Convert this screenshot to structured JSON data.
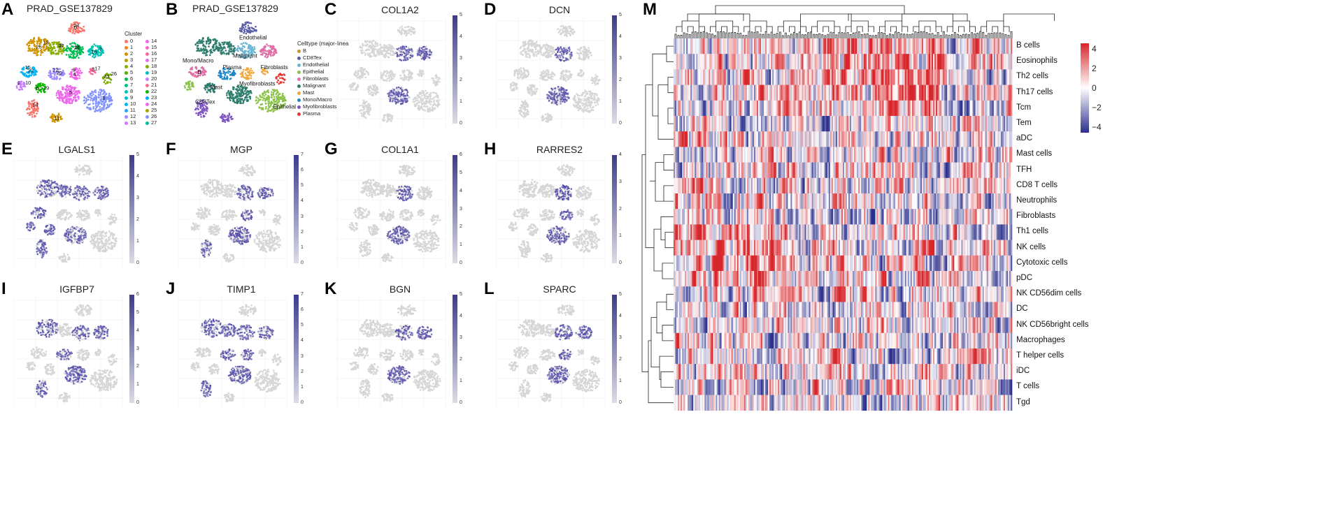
{
  "panels": {
    "A": {
      "label": "A",
      "title": "PRAD_GSE137829",
      "legend_title": "Cluster",
      "clusters": [
        "0",
        "1",
        "2",
        "3",
        "4",
        "5",
        "6",
        "7",
        "8",
        "9",
        "10",
        "11",
        "12",
        "13",
        "14",
        "15",
        "16",
        "17",
        "18",
        "19",
        "20",
        "21",
        "22",
        "23",
        "24",
        "25",
        "26",
        "27"
      ],
      "cluster_colors": [
        "#F8766D",
        "#E7851E",
        "#D09400",
        "#B2A100",
        "#89AC00",
        "#45B500",
        "#00BC51",
        "#00C087",
        "#00C0B2",
        "#00BCD6",
        "#00B3F2",
        "#29A3FF",
        "#9C8DFF",
        "#D277FF",
        "#F166E8",
        "#FF61C7",
        "#FF689F",
        "#E76BF3",
        "#7CAE00",
        "#00BFC4",
        "#C77CFF",
        "#FF6C90",
        "#0CB702",
        "#00A9FF",
        "#ED68ED",
        "#ABA300",
        "#8494FF",
        "#00C19A"
      ],
      "plot_labels": [
        "0",
        "25",
        "27",
        "18",
        "16",
        "15",
        "20",
        "4",
        "3",
        "26",
        "10",
        "19",
        "5",
        "8",
        "14",
        "11",
        "24",
        "13",
        "2",
        "21",
        "7",
        "22",
        "12",
        "9",
        "17",
        "23",
        "1",
        "6"
      ]
    },
    "B": {
      "label": "B",
      "title": "PRAD_GSE137829",
      "legend_title": "Celltype (major-linea",
      "celltypes": [
        "B",
        "CD8Tex",
        "Endothelial",
        "Epithelial",
        "Fibroblasts",
        "Malignant",
        "Mast",
        "Mono/Macro",
        "Myofibroblasts",
        "Plasma"
      ],
      "celltype_colors": [
        "#D08F2E",
        "#5A5EA8",
        "#6CB6D4",
        "#8BC34A",
        "#E06DA5",
        "#2E7D6E",
        "#F2A93B",
        "#1E88C8",
        "#7E57C2",
        "#E53935"
      ],
      "plot_labels": [
        "Endothelial",
        "Mono/Macro",
        "Malignant",
        "Plasma",
        "Fibroblasts",
        "B",
        "Mast",
        "Myofibroblasts",
        "CD8Tex",
        "Epithelial"
      ]
    },
    "C": {
      "label": "C",
      "title": "COL1A2",
      "cbar_ticks": [
        "5",
        "4",
        "3",
        "2",
        "1",
        "0"
      ]
    },
    "D": {
      "label": "D",
      "title": "DCN",
      "cbar_ticks": [
        "5",
        "4",
        "3",
        "2",
        "1",
        "0"
      ]
    },
    "E": {
      "label": "E",
      "title": "LGALS1",
      "cbar_ticks": [
        "5",
        "4",
        "3",
        "2",
        "1",
        "0"
      ]
    },
    "F": {
      "label": "F",
      "title": "MGP",
      "cbar_ticks": [
        "7",
        "6",
        "5",
        "4",
        "3",
        "2",
        "1",
        "0"
      ]
    },
    "G": {
      "label": "G",
      "title": "COL1A1",
      "cbar_ticks": [
        "6",
        "5",
        "4",
        "3",
        "2",
        "1",
        "0"
      ]
    },
    "H": {
      "label": "H",
      "title": "RARRES2",
      "cbar_ticks": [
        "4",
        "3",
        "2",
        "1",
        "0"
      ]
    },
    "I": {
      "label": "I",
      "title": "IGFBP7",
      "cbar_ticks": [
        "6",
        "5",
        "4",
        "3",
        "2",
        "1",
        "0"
      ]
    },
    "J": {
      "label": "J",
      "title": "TIMP1",
      "cbar_ticks": [
        "7",
        "6",
        "5",
        "4",
        "3",
        "2",
        "1",
        "0"
      ]
    },
    "K": {
      "label": "K",
      "title": "BGN",
      "cbar_ticks": [
        "5",
        "4",
        "3",
        "2",
        "1",
        "0"
      ]
    },
    "L": {
      "label": "L",
      "title": "SPARC",
      "cbar_ticks": [
        "5",
        "4",
        "3",
        "2",
        "1",
        "0"
      ]
    },
    "M": {
      "label": "M",
      "rows": [
        "B cells",
        "Eosinophils",
        "Th2 cells",
        "Th17 cells",
        "Tcm",
        "Tem",
        "aDC",
        "Mast cells",
        "TFH",
        "CD8 T cells",
        "Neutrophils",
        "Fibroblasts",
        "Th1 cells",
        "NK cells",
        "Cytotoxic cells",
        "pDC",
        "NK CD56dim cells",
        "DC",
        "NK CD56bright cells",
        "Macrophages",
        "T helper cells",
        "iDC",
        "T cells",
        "Tgd"
      ],
      "scale_ticks": [
        "4",
        "2",
        "0",
        "−2",
        "−4"
      ],
      "color_low": "#2B2F8C",
      "color_mid": "#FFFFFF",
      "color_high": "#D7262B"
    }
  }
}
